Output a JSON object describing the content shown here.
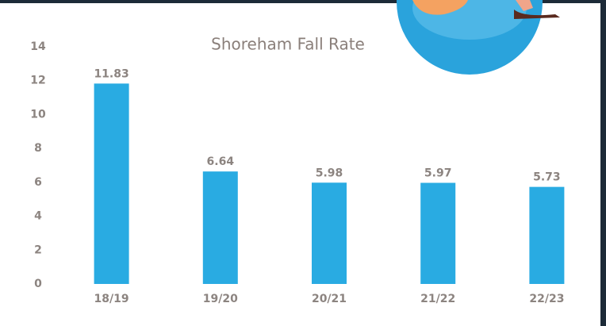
{
  "chart_data": {
    "type": "bar",
    "title": "Shoreham Fall Rate",
    "categories": [
      "18/19",
      "19/20",
      "20/21",
      "21/22",
      "22/23"
    ],
    "values": [
      11.83,
      6.64,
      5.98,
      5.97,
      5.73
    ],
    "color": "#29abe2",
    "ylim": [
      0,
      14
    ],
    "yticks": [
      0,
      2,
      4,
      6,
      8,
      10,
      12,
      14
    ],
    "grid": false
  }
}
